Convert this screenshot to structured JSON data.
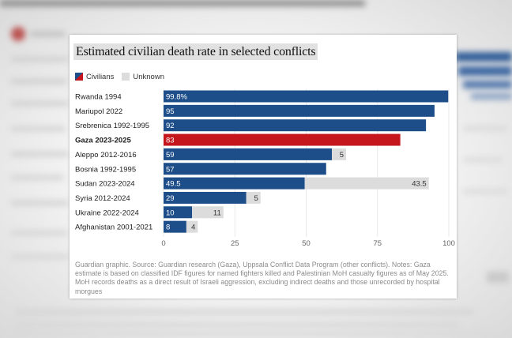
{
  "chart_data": {
    "type": "bar",
    "orientation": "horizontal",
    "stacked": true,
    "title": "Estimated civilian death rate in selected conflicts",
    "legend": {
      "placement": "top-left"
    },
    "categories": [
      "Rwanda 1994",
      "Mariupol 2022",
      "Srebrenica 1992-1995",
      "Gaza 2023-2025",
      "Aleppo 2012-2016",
      "Bosnia 1992-1995",
      "Sudan 2023-2024",
      "Syria 2012-2024",
      "Ukraine 2022-2024",
      "Afghanistan 2001-2021"
    ],
    "series": [
      {
        "name": "Civilians",
        "values": [
          99.8,
          95,
          92,
          83,
          59,
          57,
          49.5,
          29,
          10,
          8
        ],
        "labels": [
          "99.8%",
          "95",
          "92",
          "83",
          "59",
          "57",
          "49.5",
          "29",
          "10",
          "8"
        ]
      },
      {
        "name": "Unknown",
        "values": [
          0,
          0,
          0,
          0,
          5,
          0,
          43.5,
          5,
          11,
          4
        ],
        "labels": [
          "",
          "",
          "",
          "",
          "5",
          "",
          "43.5",
          "5",
          "11",
          "4"
        ]
      }
    ],
    "highlight_index": 3,
    "xlim": [
      0,
      100
    ],
    "xticks": [
      0,
      25,
      50,
      75,
      100
    ],
    "grid": true,
    "colors": {
      "civilians": "#1d4e89",
      "highlight": "#c4161c",
      "unknown": "#dcdcdc"
    },
    "note": "Guardian graphic. Source: Guardian research (Gaza), Uppsala Conflict Data Program (other conflicts). Notes: Gaza estimate is based on classified IDF figures for named fighters killed and Palestinian MoH casualty figures as of May 2025. MoH records deaths as a direct result of Israeli aggression, excluding indirect deaths and those unrecorded by hospital morgues"
  }
}
